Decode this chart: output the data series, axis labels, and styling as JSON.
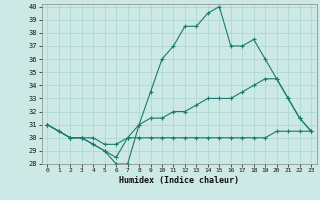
{
  "xlabel": "Humidex (Indice chaleur)",
  "xlim": [
    -0.5,
    23.5
  ],
  "ylim": [
    28,
    40.2
  ],
  "yticks": [
    28,
    29,
    30,
    31,
    32,
    33,
    34,
    35,
    36,
    37,
    38,
    39,
    40
  ],
  "xticks": [
    0,
    1,
    2,
    3,
    4,
    5,
    6,
    7,
    8,
    9,
    10,
    11,
    12,
    13,
    14,
    15,
    16,
    17,
    18,
    19,
    20,
    21,
    22,
    23
  ],
  "bg_color": "#cce9e5",
  "grid_color": "#aad4cf",
  "line_color": "#1a7a6e",
  "series": [
    {
      "x": [
        0,
        1,
        2,
        3,
        4,
        5,
        6,
        7,
        8,
        9,
        10,
        11,
        12,
        13,
        14,
        15,
        16,
        17,
        18,
        19,
        20,
        21,
        22,
        23
      ],
      "y": [
        31,
        30.5,
        30,
        30,
        30,
        29.5,
        29.5,
        30,
        30,
        30,
        30,
        30,
        30,
        30,
        30,
        30,
        30,
        30,
        30,
        30,
        30.5,
        30.5,
        30.5,
        30.5
      ]
    },
    {
      "x": [
        0,
        1,
        2,
        3,
        4,
        5,
        6,
        7,
        8,
        9,
        10,
        11,
        12,
        13,
        14,
        15,
        16,
        17,
        18,
        19,
        20,
        21,
        22,
        23
      ],
      "y": [
        31,
        30.5,
        30,
        30,
        29.5,
        29,
        28.5,
        30,
        31,
        31.5,
        31.5,
        32,
        32,
        32.5,
        33,
        33,
        33,
        33.5,
        34,
        34.5,
        34.5,
        33,
        31.5,
        30.5
      ]
    },
    {
      "x": [
        0,
        2,
        3,
        4,
        5,
        6,
        7,
        8,
        9,
        10,
        11,
        12,
        13,
        14,
        15,
        16,
        17,
        18,
        19,
        20,
        21,
        22,
        23
      ],
      "y": [
        31,
        30,
        30,
        29.5,
        29,
        28,
        28,
        31,
        33.5,
        36,
        37,
        38.5,
        38.5,
        39.5,
        40,
        37,
        37,
        37.5,
        36,
        34.5,
        33,
        31.5,
        30.5
      ]
    }
  ]
}
